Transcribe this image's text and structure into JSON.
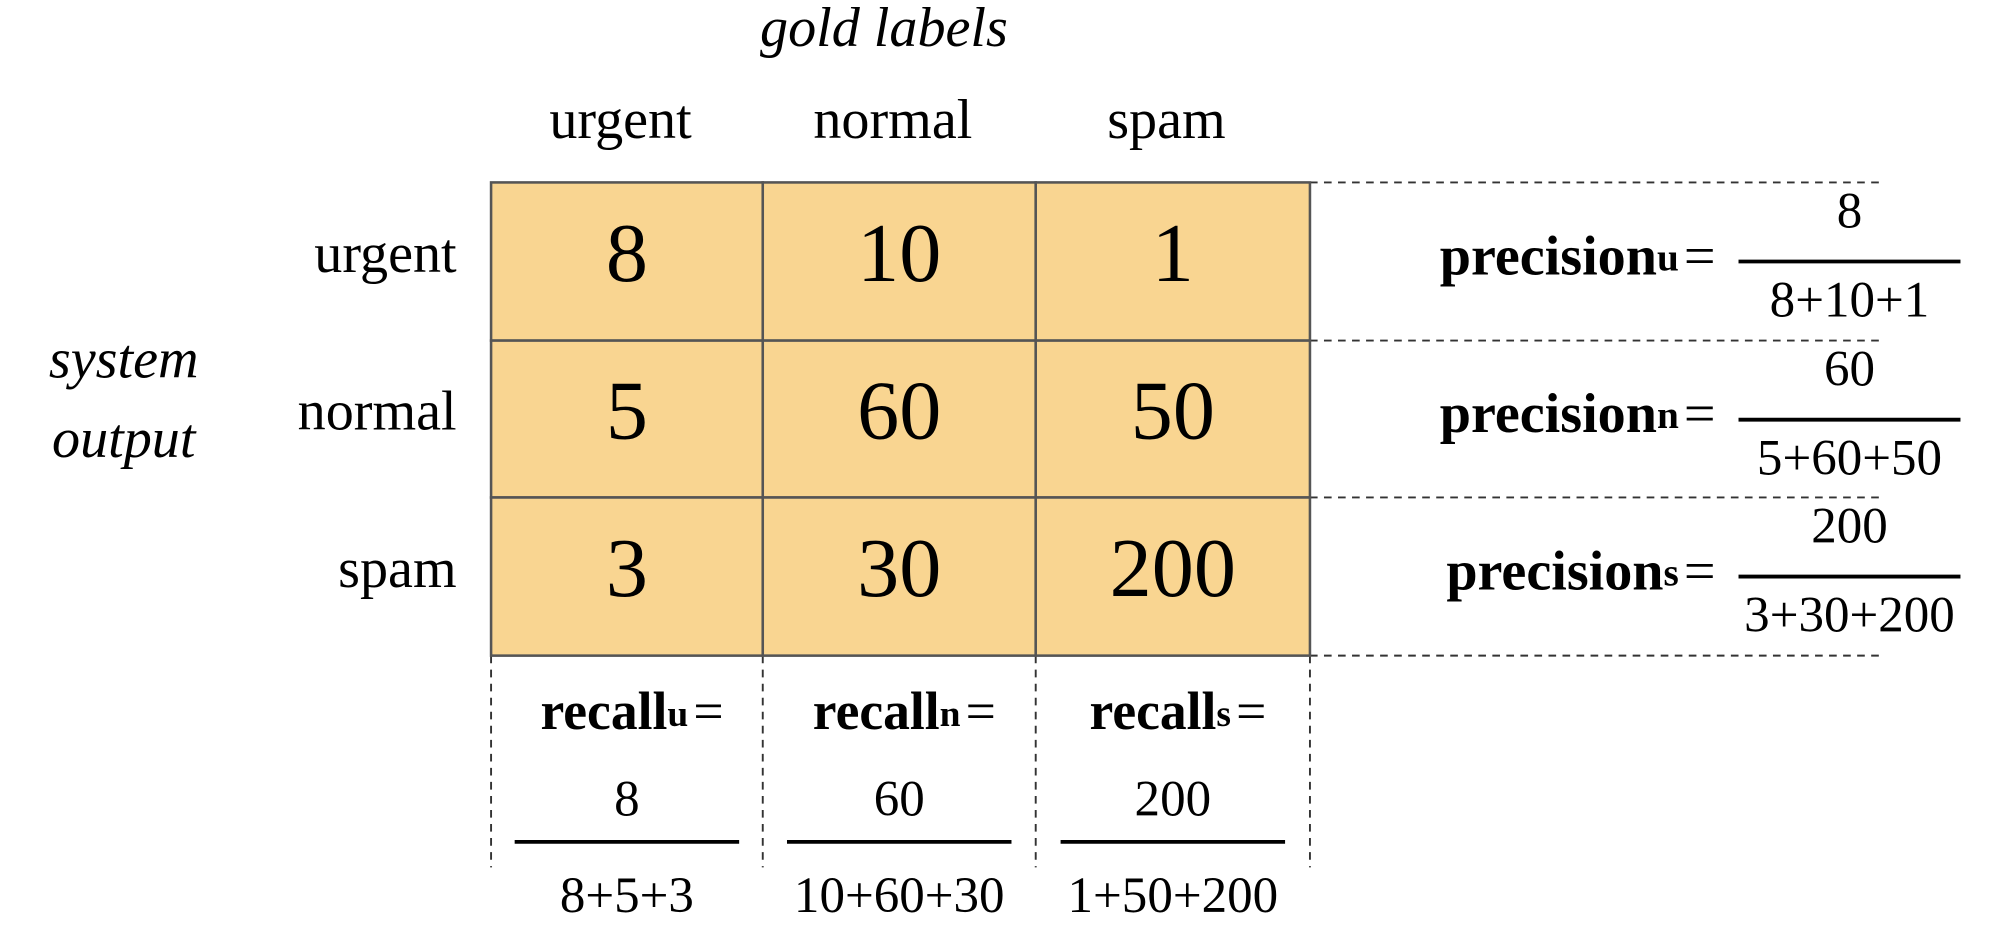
{
  "header": {
    "title": "gold labels",
    "side_title": [
      "system",
      "output"
    ]
  },
  "columns": [
    "urgent",
    "normal",
    "spam"
  ],
  "rows": [
    {
      "label": "urgent",
      "cells": [
        8,
        10,
        1
      ],
      "precision": {
        "name": "precision",
        "subscript": "u",
        "equals": "=",
        "numerator": 8,
        "denominator": "8+10+1"
      }
    },
    {
      "label": "normal",
      "cells": [
        5,
        60,
        50
      ],
      "precision": {
        "name": "precision",
        "subscript": "n",
        "equals": "=",
        "numerator": 60,
        "denominator": "5+60+50"
      }
    },
    {
      "label": "spam",
      "cells": [
        3,
        30,
        200
      ],
      "precision": {
        "name": "precision",
        "subscript": "s",
        "equals": "=",
        "numerator": 200,
        "denominator": "3+30+200"
      }
    }
  ],
  "recall": [
    {
      "name": "recall",
      "subscript": "u",
      "equals": "=",
      "numerator": 8,
      "denominator": "8+5+3"
    },
    {
      "name": "recall",
      "subscript": "n",
      "equals": "=",
      "numerator": 60,
      "denominator": "10+60+30"
    },
    {
      "name": "recall",
      "subscript": "s",
      "equals": "=",
      "numerator": 200,
      "denominator": "1+50+200"
    }
  ]
}
